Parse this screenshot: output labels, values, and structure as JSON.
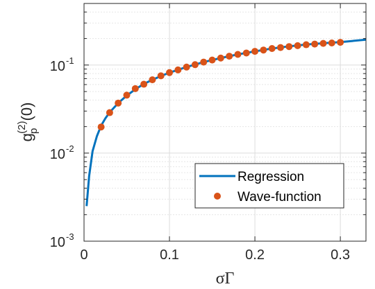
{
  "chart_data": {
    "type": "line",
    "xlabel": "σΓ",
    "ylabel": "g_p^(2)(0)",
    "ylabel_base": "g",
    "ylabel_sub": "p",
    "ylabel_sup": "(2)",
    "ylabel_tail": "(0)",
    "xlim": [
      0,
      0.33
    ],
    "ylim": [
      0.001,
      0.5
    ],
    "yscale": "log",
    "grid": true,
    "legend_position": "bottom-right",
    "xticks": [
      {
        "value": 0,
        "label": "0"
      },
      {
        "value": 0.1,
        "label": "0.1"
      },
      {
        "value": 0.2,
        "label": "0.2"
      },
      {
        "value": 0.3,
        "label": "0.3"
      }
    ],
    "yticks": [
      {
        "value": 0.001,
        "base": "10",
        "exp": "-3"
      },
      {
        "value": 0.01,
        "base": "10",
        "exp": "-2"
      },
      {
        "value": 0.1,
        "base": "10",
        "exp": "-1"
      }
    ],
    "series": [
      {
        "name": "Regression",
        "style": "line",
        "color": "#0072BD",
        "x": [
          0.003,
          0.006,
          0.01,
          0.015,
          0.02,
          0.025,
          0.03,
          0.04,
          0.05,
          0.06,
          0.07,
          0.08,
          0.09,
          0.1,
          0.12,
          0.14,
          0.16,
          0.18,
          0.2,
          0.22,
          0.24,
          0.26,
          0.28,
          0.3,
          0.31,
          0.32,
          0.33
        ],
        "y": [
          0.0025,
          0.0055,
          0.0105,
          0.0155,
          0.0205,
          0.0248,
          0.029,
          0.037,
          0.045,
          0.053,
          0.061,
          0.068,
          0.075,
          0.082,
          0.095,
          0.108,
          0.12,
          0.132,
          0.143,
          0.154,
          0.163,
          0.171,
          0.177,
          0.182,
          0.186,
          0.19,
          0.194
        ]
      },
      {
        "name": "Wave-function",
        "style": "markers",
        "color": "#D95319",
        "x": [
          0.02,
          0.03,
          0.04,
          0.05,
          0.06,
          0.07,
          0.08,
          0.09,
          0.1,
          0.11,
          0.12,
          0.13,
          0.14,
          0.15,
          0.16,
          0.17,
          0.18,
          0.19,
          0.2,
          0.21,
          0.22,
          0.23,
          0.24,
          0.25,
          0.26,
          0.27,
          0.28,
          0.29,
          0.3
        ],
        "y": [
          0.0198,
          0.0288,
          0.037,
          0.0455,
          0.054,
          0.0605,
          0.068,
          0.0755,
          0.082,
          0.088,
          0.0948,
          0.101,
          0.108,
          0.114,
          0.12,
          0.126,
          0.132,
          0.137,
          0.143,
          0.148,
          0.154,
          0.158,
          0.162,
          0.166,
          0.17,
          0.173,
          0.176,
          0.178,
          0.181
        ]
      }
    ]
  }
}
